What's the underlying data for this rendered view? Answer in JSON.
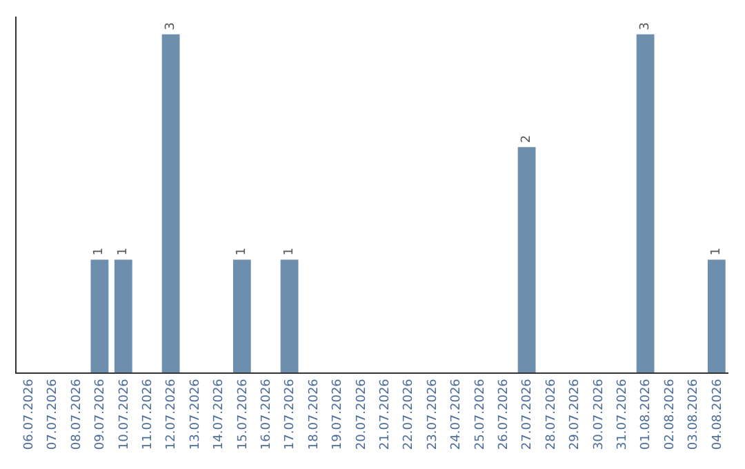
{
  "chart_data": {
    "type": "bar",
    "categories": [
      "06.07.2026",
      "07.07.2026",
      "08.07.2026",
      "09.07.2026",
      "10.07.2026",
      "11.07.2026",
      "12.07.2026",
      "13.07.2026",
      "14.07.2026",
      "15.07.2026",
      "16.07.2026",
      "17.07.2026",
      "18.07.2026",
      "19.07.2026",
      "20.07.2026",
      "21.07.2026",
      "22.07.2026",
      "23.07.2026",
      "24.07.2026",
      "25.07.2026",
      "26.07.2026",
      "27.07.2026",
      "28.07.2026",
      "29.07.2026",
      "30.07.2026",
      "31.07.2026",
      "01.08.2026",
      "02.08.2026",
      "03.08.2026",
      "04.08.2026"
    ],
    "values": [
      0,
      0,
      0,
      1,
      1,
      0,
      3,
      0,
      0,
      1,
      0,
      1,
      0,
      0,
      0,
      0,
      0,
      0,
      0,
      0,
      0,
      2,
      0,
      0,
      0,
      0,
      3,
      0,
      0,
      1
    ],
    "value_labels": [
      null,
      null,
      null,
      "1",
      "1",
      null,
      "3",
      null,
      null,
      "1",
      null,
      "1",
      null,
      null,
      null,
      null,
      null,
      null,
      null,
      null,
      null,
      "2",
      null,
      null,
      null,
      null,
      "3",
      null,
      null,
      "1"
    ],
    "color": "#6d8fad",
    "legend": false,
    "tick_labels": "x"
  }
}
